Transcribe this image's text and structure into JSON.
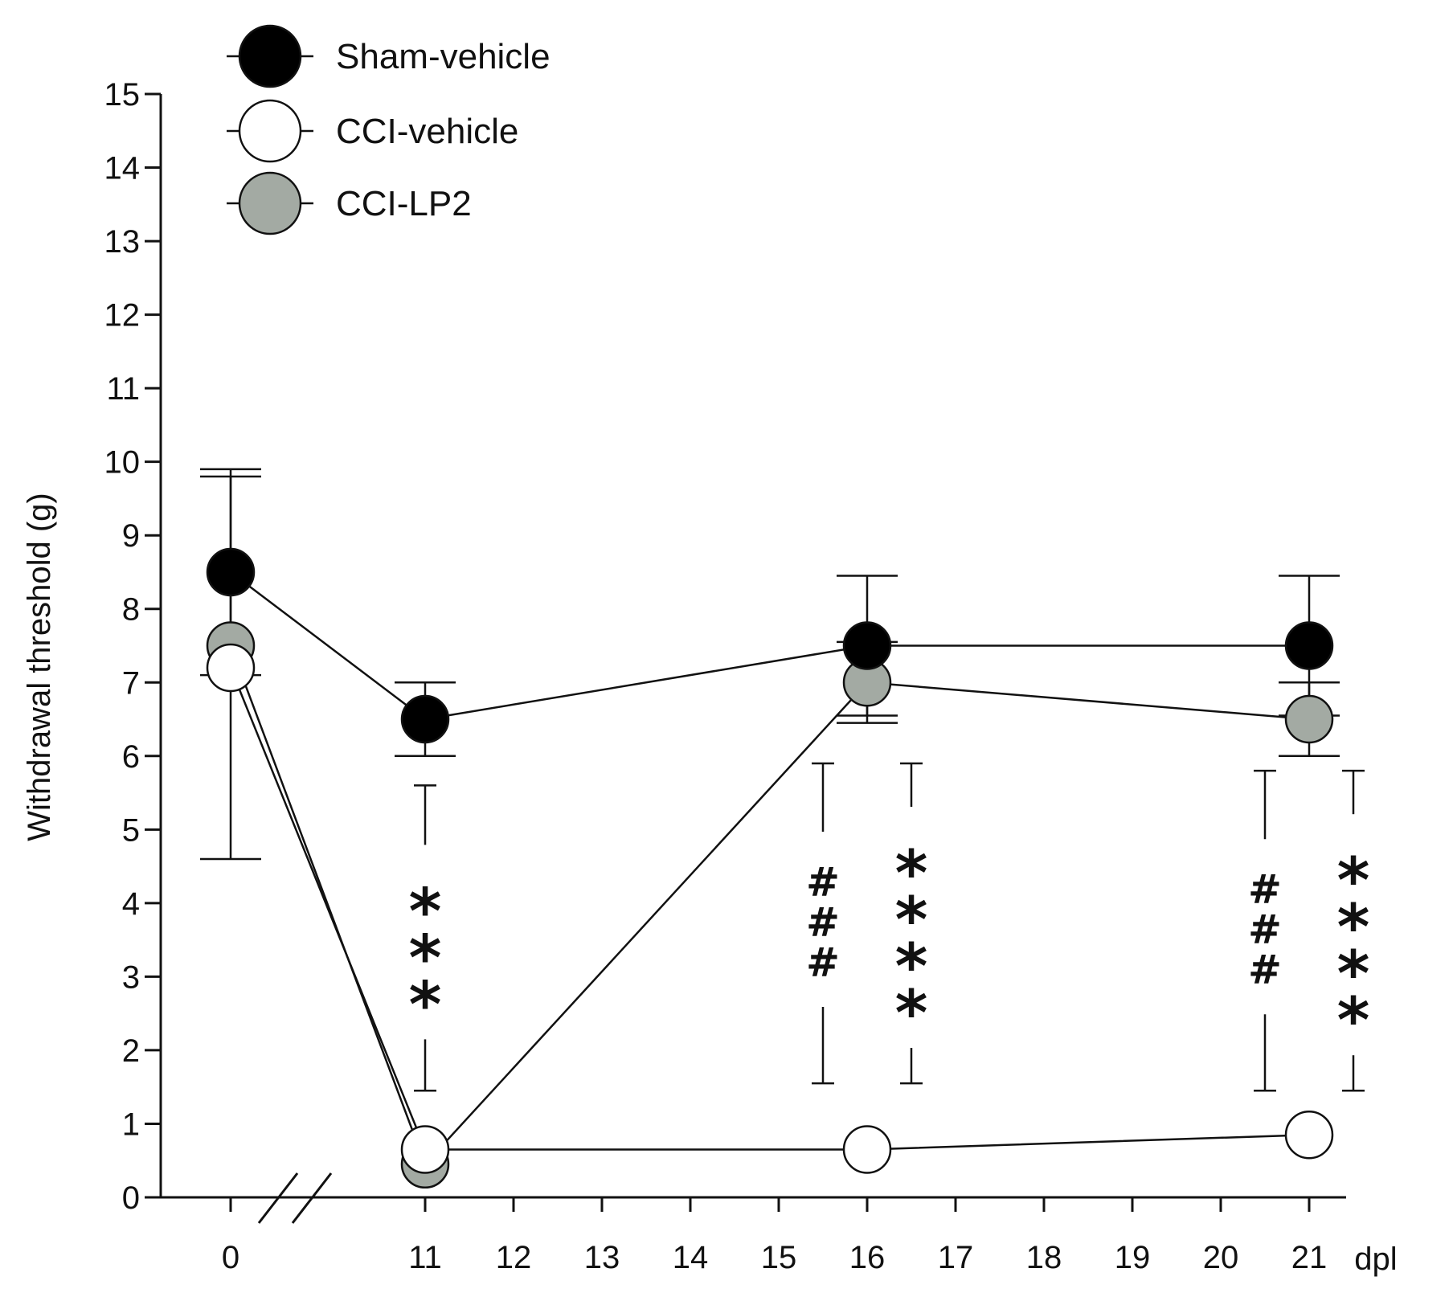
{
  "chart_data": {
    "type": "line",
    "title": "",
    "xlabel": "dpl",
    "ylabel": "Withdrawal threshold (g)",
    "ylim": [
      0,
      15
    ],
    "yticks": [
      0,
      1,
      2,
      3,
      4,
      5,
      6,
      7,
      8,
      9,
      10,
      11,
      12,
      13,
      14,
      15
    ],
    "xticks": [
      0,
      11,
      12,
      13,
      14,
      15,
      16,
      17,
      18,
      19,
      20,
      21
    ],
    "axis_break": "between 0 and 11",
    "legend_position": "top-left",
    "series": [
      {
        "name": "Sham-vehicle",
        "fill": "#000000",
        "x": [
          0,
          11,
          16,
          21
        ],
        "values": [
          8.5,
          6.5,
          7.5,
          7.5
        ],
        "error": [
          1.4,
          0.5,
          0.95,
          0.95
        ]
      },
      {
        "name": "CCI-vehicle",
        "fill": "#ffffff",
        "x": [
          0,
          11,
          16,
          21
        ],
        "values": [
          7.2,
          0.65,
          0.65,
          0.85
        ],
        "error": [
          2.6,
          0.0,
          0.0,
          0.0
        ]
      },
      {
        "name": "CCI-LP2",
        "fill": "#a3aaa3",
        "x": [
          0,
          11,
          16,
          21
        ],
        "values": [
          7.5,
          0.45,
          7.0,
          6.5
        ],
        "error": [
          0.0,
          0.0,
          0.55,
          0.5
        ]
      }
    ],
    "annotations": [
      {
        "x": 11,
        "offset": 0,
        "text": "***",
        "kind": "star",
        "bar": [
          1.45,
          5.6
        ]
      },
      {
        "x": 16,
        "offset": -0.5,
        "text": "###",
        "kind": "hash",
        "bar": [
          1.55,
          5.9
        ]
      },
      {
        "x": 16,
        "offset": 0.5,
        "text": "****",
        "kind": "star",
        "bar": [
          1.55,
          5.9
        ]
      },
      {
        "x": 21,
        "offset": -0.5,
        "text": "###",
        "kind": "hash",
        "bar": [
          1.45,
          5.8
        ]
      },
      {
        "x": 21,
        "offset": 0.5,
        "text": "****",
        "kind": "star",
        "bar": [
          1.45,
          5.8
        ]
      }
    ]
  }
}
